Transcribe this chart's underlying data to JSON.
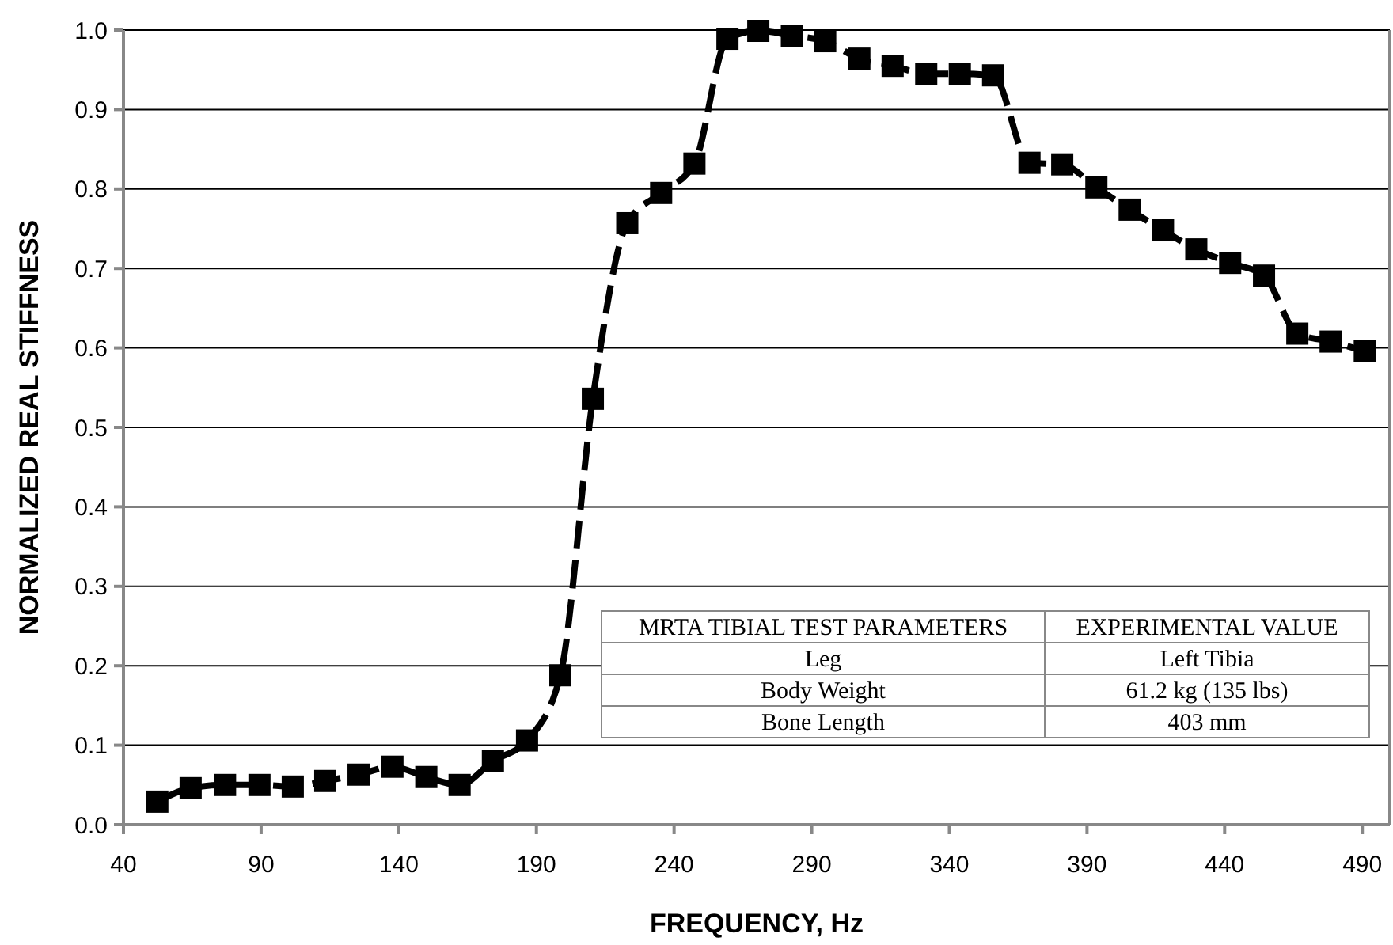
{
  "chart_data": {
    "type": "line",
    "xlabel": "FREQUENCY, Hz",
    "ylabel": "NORMALIZED REAL STIFFNESS",
    "x": [
      52.3,
      64.4,
      76.9,
      89.4,
      101.5,
      113.3,
      125.4,
      137.7,
      150,
      162.1,
      174.2,
      186.6,
      198.7,
      210.5,
      223,
      235.3,
      247.4,
      259.4,
      270.6,
      282.8,
      294.9,
      307.3,
      319.4,
      331.6,
      343.8,
      355.9,
      369.1,
      381,
      393.4,
      405.5,
      417.6,
      429.7,
      442,
      454.3,
      466.4,
      478.5,
      490.9
    ],
    "series": [
      {
        "color": "#000000",
        "values": [
          0.029,
          0.046,
          0.05,
          0.05,
          0.048,
          0.055,
          0.063,
          0.073,
          0.06,
          0.05,
          0.08,
          0.106,
          0.188,
          0.536,
          0.757,
          0.795,
          0.832,
          0.989,
          0.999,
          0.993,
          0.986,
          0.964,
          0.955,
          0.945,
          0.945,
          0.943,
          0.833,
          0.831,
          0.802,
          0.774,
          0.748,
          0.724,
          0.707,
          0.691,
          0.618,
          0.608,
          0.596
        ]
      }
    ],
    "xlim": [
      40,
      500
    ],
    "xticks": [
      40,
      90,
      140,
      190,
      240,
      290,
      340,
      390,
      440,
      490
    ],
    "ylim": [
      0,
      1
    ],
    "yticks": [
      {
        "value": 0,
        "label": "0.0"
      },
      0.1,
      0.2,
      0.3,
      0.4,
      0.5,
      0.6,
      0.7,
      0.8,
      0.9,
      {
        "value": 1,
        "label": "1.0"
      }
    ],
    "grid": "y",
    "marker": "square",
    "line_style": "dashed",
    "annotations": [
      "MRTA TIBIAL TEST PARAMETERS",
      "EXPERIMENTAL VALUE",
      "Leg",
      "Left Tibia",
      "Body Weight",
      "61.2 kg (135 lbs)",
      "Bone Length",
      "403 mm"
    ]
  }
}
